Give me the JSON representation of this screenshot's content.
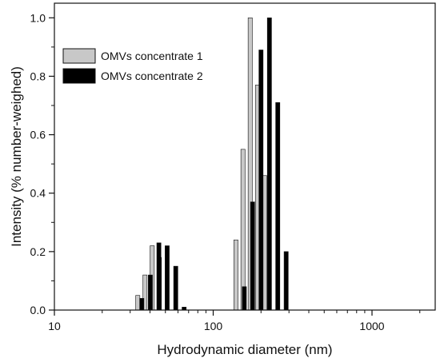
{
  "chart_data": {
    "type": "bar",
    "xscale": "log",
    "xlim": [
      10,
      2500
    ],
    "ylim": [
      0,
      1.05
    ],
    "xlabel": "Hydrodynamic diameter (nm)",
    "ylabel": "Intensity (% number-weighed)",
    "x_ticks": [
      {
        "value": 10,
        "label": "10"
      },
      {
        "value": 100,
        "label": "100"
      },
      {
        "value": 1000,
        "label": "1000"
      }
    ],
    "y_ticks": [
      {
        "value": 0.0,
        "label": "0.0"
      },
      {
        "value": 0.2,
        "label": "0.2"
      },
      {
        "value": 0.4,
        "label": "0.4"
      },
      {
        "value": 0.6,
        "label": "0.6"
      },
      {
        "value": 0.8,
        "label": "0.8"
      },
      {
        "value": 1.0,
        "label": "1.0"
      }
    ],
    "grid": false,
    "legend_position": "top-left",
    "series": [
      {
        "name": "OMVs concentrate 1",
        "color": "#c8c8c8",
        "points": [
          {
            "x": 33.5,
            "y": 0.05
          },
          {
            "x": 37.2,
            "y": 0.12
          },
          {
            "x": 41.3,
            "y": 0.22
          },
          {
            "x": 45.8,
            "y": 0.18
          },
          {
            "x": 139,
            "y": 0.24
          },
          {
            "x": 154,
            "y": 0.55
          },
          {
            "x": 171,
            "y": 1.0
          },
          {
            "x": 190,
            "y": 0.77
          },
          {
            "x": 211,
            "y": 0.46
          }
        ]
      },
      {
        "name": "OMVs concentrate 2",
        "color": "#000000",
        "points": [
          {
            "x": 35.5,
            "y": 0.04
          },
          {
            "x": 40.2,
            "y": 0.12
          },
          {
            "x": 45.5,
            "y": 0.23
          },
          {
            "x": 51.3,
            "y": 0.22
          },
          {
            "x": 58.1,
            "y": 0.15
          },
          {
            "x": 65.6,
            "y": 0.01
          },
          {
            "x": 157,
            "y": 0.08
          },
          {
            "x": 177,
            "y": 0.37
          },
          {
            "x": 200,
            "y": 0.89
          },
          {
            "x": 226,
            "y": 1.0
          },
          {
            "x": 255,
            "y": 0.71
          },
          {
            "x": 288,
            "y": 0.2
          }
        ]
      }
    ]
  }
}
